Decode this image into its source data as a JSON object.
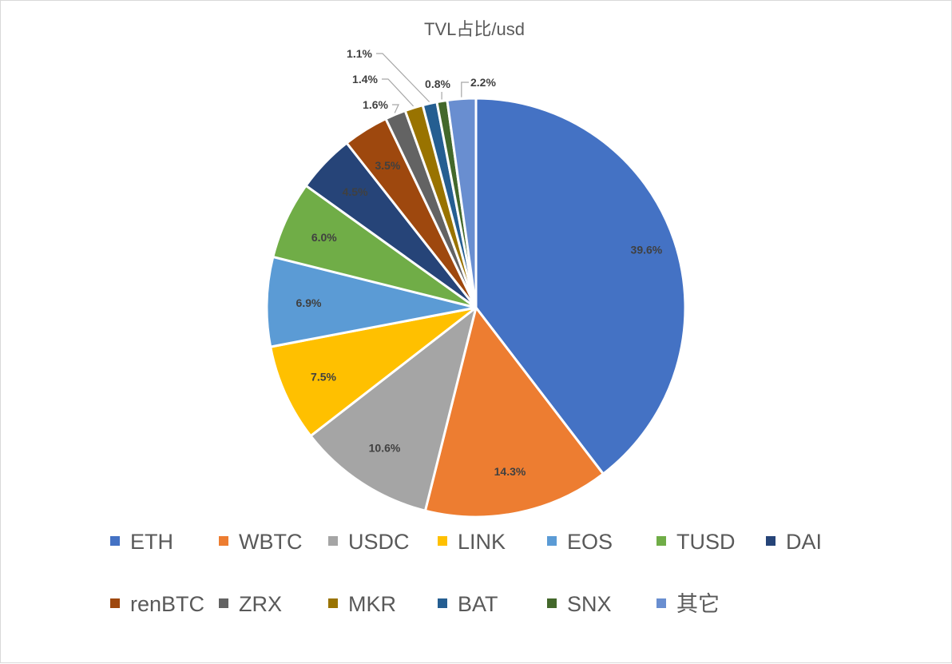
{
  "chart_data": {
    "type": "pie",
    "title": "TVL占比/usd",
    "legend_position": "bottom",
    "slices": [
      {
        "label": "ETH",
        "value": 39.6,
        "display": "39.6%",
        "color": "#4472C4"
      },
      {
        "label": "WBTC",
        "value": 14.3,
        "display": "14.3%",
        "color": "#ED7D31"
      },
      {
        "label": "USDC",
        "value": 10.6,
        "display": "10.6%",
        "color": "#A5A5A5"
      },
      {
        "label": "LINK",
        "value": 7.5,
        "display": "7.5%",
        "color": "#FFC000"
      },
      {
        "label": "EOS",
        "value": 6.9,
        "display": "6.9%",
        "color": "#5B9BD5"
      },
      {
        "label": "TUSD",
        "value": 6.0,
        "display": "6.0%",
        "color": "#70AD47"
      },
      {
        "label": "DAI",
        "value": 4.5,
        "display": "4.5%",
        "color": "#264478"
      },
      {
        "label": "renBTC",
        "value": 3.5,
        "display": "3.5%",
        "color": "#9E480E"
      },
      {
        "label": "ZRX",
        "value": 1.6,
        "display": "1.6%",
        "color": "#636363"
      },
      {
        "label": "MKR",
        "value": 1.4,
        "display": "1.4%",
        "color": "#997300"
      },
      {
        "label": "BAT",
        "value": 1.1,
        "display": "1.1%",
        "color": "#255E91"
      },
      {
        "label": "SNX",
        "value": 0.8,
        "display": "0.8%",
        "color": "#43682B"
      },
      {
        "label": "其它",
        "value": 2.2,
        "display": "2.2%",
        "color": "#698ED0"
      }
    ]
  }
}
